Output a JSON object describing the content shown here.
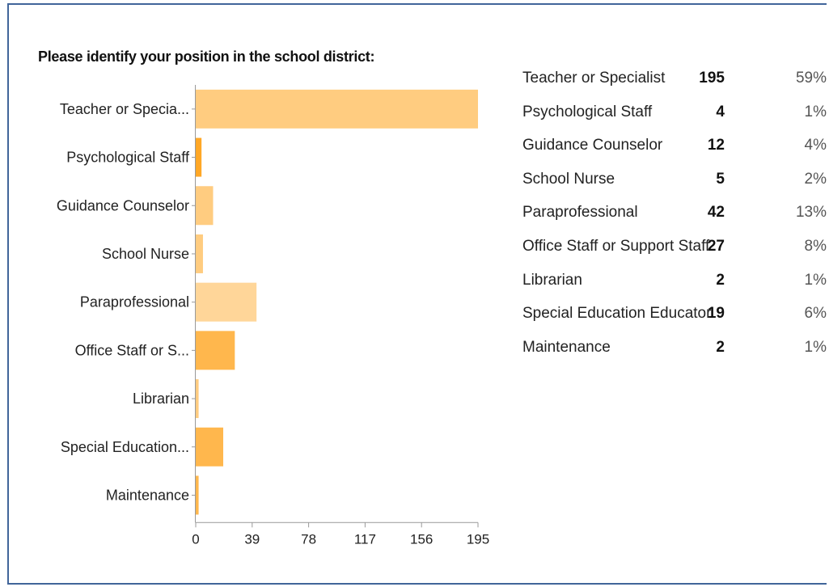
{
  "chart_data": {
    "type": "bar",
    "orientation": "horizontal",
    "title": "Please identify your position in the school district:",
    "categories": [
      "Teacher or Specia...",
      "Psychological Staff",
      "Guidance Counselor",
      "School Nurse",
      "Paraprofessional",
      "Office Staff or S...",
      "Librarian",
      "Special Education...",
      "Maintenance"
    ],
    "values": [
      195,
      4,
      12,
      5,
      42,
      27,
      2,
      19,
      2
    ],
    "colors": [
      "#ffcc80",
      "#ffa726",
      "#ffcc80",
      "#ffcc80",
      "#ffd699",
      "#ffb74d",
      "#ffcc80",
      "#ffb74d",
      "#ffb74d"
    ],
    "x_ticks": [
      "0",
      "39",
      "78",
      "117",
      "156",
      "195"
    ],
    "xlim": [
      0,
      195
    ]
  },
  "table": [
    {
      "label": "Teacher or Specialist",
      "count": "195",
      "percent": "59%"
    },
    {
      "label": "Psychological Staff",
      "count": "4",
      "percent": "1%"
    },
    {
      "label": "Guidance Counselor",
      "count": "12",
      "percent": "4%"
    },
    {
      "label": "School Nurse",
      "count": "5",
      "percent": "2%"
    },
    {
      "label": "Paraprofessional",
      "count": "42",
      "percent": "13%"
    },
    {
      "label": "Office Staff or Support Staff",
      "count": "27",
      "percent": "8%"
    },
    {
      "label": "Librarian",
      "count": "2",
      "percent": "1%"
    },
    {
      "label": "Special Education Educator",
      "count": "19",
      "percent": "6%"
    },
    {
      "label": "Maintenance",
      "count": "2",
      "percent": "1%"
    }
  ]
}
